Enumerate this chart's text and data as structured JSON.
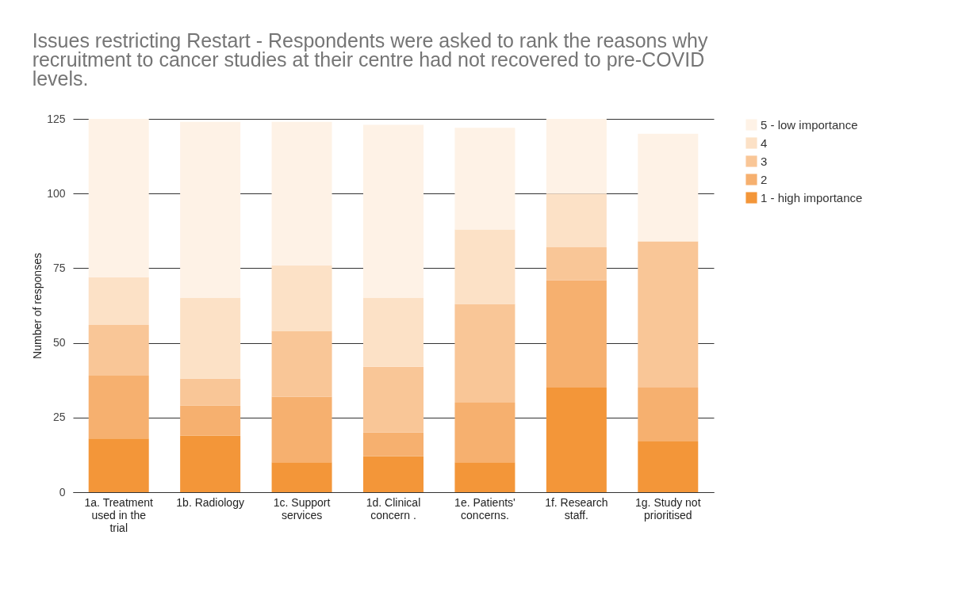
{
  "chart_data": {
    "type": "bar",
    "stacked": true,
    "title": "Issues restricting Restart - Respondents were asked to rank the reasons why recruitment to cancer studies at their centre had not recovered to pre-COVID levels.",
    "ylabel": "Number of responses",
    "categories": [
      "1a. Treatment used in the trial",
      "1b. Radiology",
      "1c. Support services",
      "1d. Clinical concern .",
      "1e. Patients' concerns.",
      "1f. Research staff.",
      "1g. Study not prioritised"
    ],
    "series": [
      {
        "name": "1 - high importance",
        "color": "#f39639",
        "values": [
          18,
          19,
          10,
          12,
          10,
          35,
          17
        ]
      },
      {
        "name": "2",
        "color": "#f6b06f",
        "values": [
          21,
          10,
          22,
          8,
          20,
          36,
          18
        ]
      },
      {
        "name": "3",
        "color": "#f9c697",
        "values": [
          17,
          9,
          22,
          22,
          33,
          11,
          49
        ]
      },
      {
        "name": "4",
        "color": "#fce1c6",
        "values": [
          16,
          27,
          22,
          23,
          25,
          18,
          0
        ]
      },
      {
        "name": "5 - low importance",
        "color": "#fef2e6",
        "values": [
          53,
          59,
          48,
          58,
          34,
          25,
          36
        ]
      }
    ],
    "ylim": [
      0,
      125
    ],
    "yticks": [
      0,
      25,
      50,
      75,
      100,
      125
    ],
    "grid": "y",
    "legend": "top right"
  }
}
